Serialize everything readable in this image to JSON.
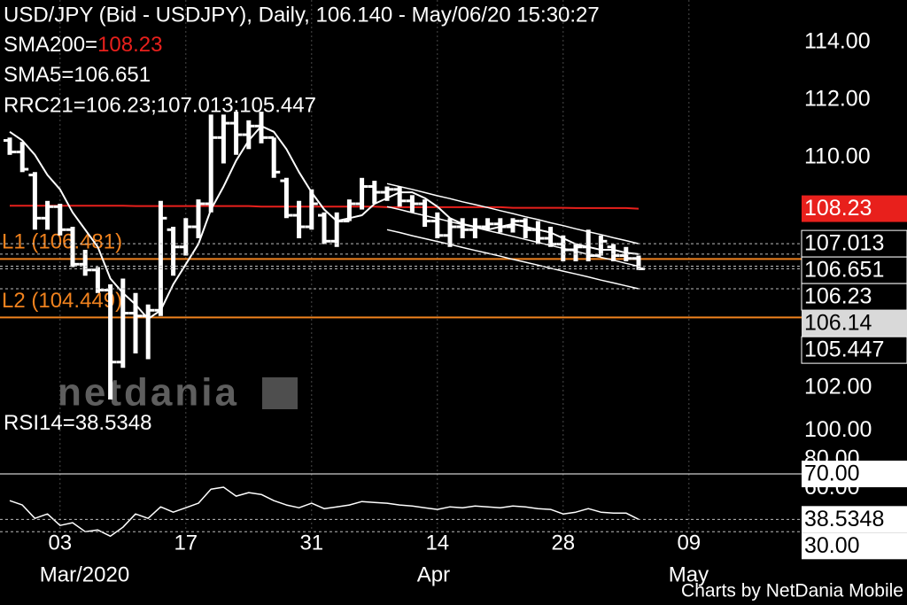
{
  "chart_data": [
    {
      "type": "ohlc",
      "title": "USD/JPY (Bid - USDJPY),  Daily, 106.140 - May/06/20 15:30:27",
      "categories": [
        null,
        null,
        null,
        null,
        "03",
        null,
        null,
        null,
        null,
        null,
        null,
        null,
        null,
        null,
        "17",
        null,
        null,
        null,
        null,
        null,
        null,
        null,
        null,
        null,
        "31",
        null,
        null,
        null,
        null,
        null,
        null,
        null,
        null,
        null,
        "14",
        null,
        null,
        null,
        null,
        null,
        null,
        null,
        null,
        null,
        "28",
        null,
        null,
        null,
        null,
        null,
        null,
        null,
        null,
        null,
        "09",
        null,
        null,
        null,
        null,
        null,
        null,
        null,
        null
      ],
      "months": [
        null,
        null,
        null,
        null,
        "Mar/2020",
        null,
        null,
        null,
        null,
        null,
        null,
        null,
        null,
        null,
        null,
        null,
        null,
        null,
        null,
        null,
        null,
        null,
        null,
        null,
        null,
        null,
        null,
        null,
        null,
        null,
        null,
        null,
        null,
        null,
        "Apr",
        null,
        null,
        null,
        null,
        null,
        null,
        null,
        null,
        null,
        null,
        null,
        null,
        null,
        null,
        null,
        null,
        null,
        null,
        null,
        "May",
        null,
        null,
        null,
        null,
        null,
        null,
        null,
        null
      ],
      "open": [
        110.6,
        110.2,
        109.4,
        107.9,
        108.3,
        107.5,
        106.3,
        106.1,
        105.4,
        102.9,
        104.6,
        104.5,
        104.7,
        107.5,
        106.9,
        107.6,
        108.4,
        110.7,
        111.2,
        110.8,
        111.1,
        110.7,
        109.2,
        108.0,
        107.6,
        108.0,
        107.1,
        107.8,
        108.4,
        109.0,
        108.8,
        108.9,
        108.5,
        108.4,
        107.8,
        107.3,
        107.6,
        107.5,
        107.6,
        107.7,
        107.6,
        107.8,
        107.5,
        107.2,
        107.0,
        106.8,
        106.9,
        106.6,
        106.9,
        106.6,
        106.5,
        null,
        null,
        null,
        null,
        null,
        null,
        null,
        null,
        null,
        null,
        null,
        null
      ],
      "high": [
        110.7,
        110.55,
        109.5,
        108.5,
        108.4,
        107.6,
        106.8,
        106.2,
        105.6,
        105.8,
        105.3,
        104.9,
        108.5,
        107.6,
        107.9,
        108.55,
        111.5,
        111.5,
        111.6,
        111.3,
        111.6,
        110.7,
        109.3,
        108.5,
        108.9,
        108.1,
        108.1,
        108.55,
        109.3,
        109.2,
        109.0,
        109.0,
        108.7,
        108.55,
        108.1,
        107.9,
        107.9,
        107.9,
        107.9,
        107.9,
        107.9,
        107.9,
        107.8,
        107.6,
        107.3,
        107.0,
        107.5,
        107.3,
        107.0,
        106.9,
        106.6,
        null,
        null,
        null,
        null,
        null,
        null,
        null,
        null,
        null,
        null,
        null,
        null
      ],
      "low": [
        110.1,
        109.5,
        107.5,
        107.5,
        107.3,
        106.2,
        105.9,
        105.3,
        101.6,
        102.7,
        103.2,
        103.0,
        104.5,
        105.9,
        106.6,
        107.2,
        108.1,
        109.8,
        110.1,
        110.3,
        110.5,
        109.3,
        107.9,
        107.2,
        107.5,
        107.0,
        106.9,
        107.8,
        108.2,
        108.4,
        108.5,
        108.3,
        108.1,
        107.6,
        107.2,
        106.9,
        107.2,
        107.2,
        107.5,
        107.4,
        107.4,
        107.2,
        107.0,
        106.9,
        106.4,
        106.4,
        106.4,
        106.6,
        106.4,
        106.4,
        106.1,
        null,
        null,
        null,
        null,
        null,
        null,
        null,
        null,
        null,
        null,
        null,
        null
      ],
      "close": [
        110.2,
        109.6,
        107.9,
        108.3,
        107.5,
        106.3,
        106.1,
        105.4,
        102.9,
        104.6,
        104.5,
        104.7,
        107.9,
        106.9,
        107.6,
        108.4,
        110.7,
        111.2,
        110.8,
        111.1,
        110.7,
        109.5,
        108.0,
        107.6,
        108.4,
        107.1,
        107.8,
        108.4,
        109.0,
        108.8,
        108.9,
        108.5,
        108.4,
        107.8,
        107.3,
        107.6,
        107.5,
        107.6,
        107.7,
        107.6,
        107.8,
        107.5,
        107.2,
        107.0,
        106.8,
        106.9,
        106.6,
        107.1,
        106.6,
        106.5,
        106.14,
        null,
        null,
        null,
        null,
        null,
        null,
        null,
        null,
        null,
        null,
        null,
        null
      ],
      "color": "#ffffff",
      "series": [
        {
          "name": "SMA200=",
          "color": "#e8201c",
          "values": [
            108.33,
            108.33,
            108.33,
            108.33,
            108.33,
            108.33,
            108.33,
            108.33,
            108.33,
            108.33,
            108.32,
            108.32,
            108.32,
            108.32,
            108.32,
            108.32,
            108.32,
            108.32,
            108.32,
            108.32,
            108.3,
            108.3,
            108.3,
            108.3,
            108.3,
            108.3,
            108.3,
            108.3,
            108.3,
            108.3,
            108.28,
            108.28,
            108.28,
            108.28,
            108.28,
            108.28,
            108.28,
            108.28,
            108.28,
            108.28,
            108.26,
            108.26,
            108.26,
            108.26,
            108.26,
            108.25,
            108.25,
            108.25,
            108.25,
            108.25,
            108.23,
            null,
            null,
            null,
            null,
            null,
            null,
            null,
            null,
            null,
            null,
            null,
            null
          ]
        },
        {
          "name": "SMA5=",
          "color": "#ffffff",
          "values": [
            110.9,
            110.6,
            110.1,
            109.4,
            108.9,
            108.1,
            107.5,
            106.9,
            105.8,
            105.3,
            104.9,
            104.4,
            104.7,
            105.6,
            106.3,
            107.0,
            108.2,
            109.0,
            109.9,
            110.6,
            111.1,
            110.9,
            110.3,
            109.5,
            108.8,
            108.2,
            107.8,
            107.9,
            108.0,
            108.4,
            108.6,
            108.8,
            108.8,
            108.6,
            108.3,
            107.9,
            107.7,
            107.6,
            107.5,
            107.6,
            107.7,
            107.6,
            107.5,
            107.4,
            107.2,
            107.0,
            106.9,
            106.8,
            106.8,
            106.7,
            106.651,
            null,
            null,
            null,
            null,
            null,
            null,
            null,
            null,
            null,
            null,
            null,
            null
          ]
        }
      ],
      "channel": {
        "name": "RRC21=106.23;107.013;105.447",
        "color": "#ffffff",
        "upper": [
          null,
          null,
          null,
          null,
          null,
          null,
          null,
          null,
          null,
          null,
          null,
          null,
          null,
          null,
          null,
          null,
          null,
          null,
          null,
          null,
          null,
          null,
          null,
          null,
          null,
          null,
          null,
          null,
          null,
          null,
          109.1,
          109.0,
          108.9,
          108.79,
          108.68,
          108.58,
          108.47,
          108.37,
          108.27,
          108.16,
          108.06,
          107.95,
          107.85,
          107.74,
          107.64,
          107.53,
          107.43,
          107.33,
          107.22,
          107.12,
          107.013,
          null,
          null,
          null,
          null,
          null,
          null,
          null,
          null,
          null,
          null,
          null,
          null
        ],
        "middle": [
          null,
          null,
          null,
          null,
          null,
          null,
          null,
          null,
          null,
          null,
          null,
          null,
          null,
          null,
          null,
          null,
          null,
          null,
          null,
          null,
          null,
          null,
          null,
          null,
          null,
          null,
          null,
          null,
          null,
          null,
          108.3,
          108.2,
          108.09,
          107.99,
          107.89,
          107.78,
          107.68,
          107.58,
          107.47,
          107.37,
          107.27,
          107.16,
          107.06,
          106.95,
          106.85,
          106.75,
          106.64,
          106.54,
          106.44,
          106.33,
          106.23,
          null,
          null,
          null,
          null,
          null,
          null,
          null,
          null,
          null,
          null,
          null,
          null
        ],
        "lower": [
          null,
          null,
          null,
          null,
          null,
          null,
          null,
          null,
          null,
          null,
          null,
          null,
          null,
          null,
          null,
          null,
          null,
          null,
          null,
          null,
          null,
          null,
          null,
          null,
          null,
          null,
          null,
          null,
          null,
          null,
          107.5,
          107.4,
          107.29,
          107.19,
          107.09,
          106.99,
          106.88,
          106.78,
          106.68,
          106.58,
          106.47,
          106.37,
          106.27,
          106.16,
          106.06,
          105.96,
          105.86,
          105.75,
          105.65,
          105.55,
          105.447,
          null,
          null,
          null,
          null,
          null,
          null,
          null,
          null,
          null,
          null,
          null,
          null
        ]
      },
      "levels": [
        {
          "label": "L1 (106.481)",
          "value": 106.481,
          "color": "#f0821e"
        },
        {
          "label": "L2 (104.449)",
          "value": 104.449,
          "color": "#f0821e"
        }
      ],
      "ylim": [
        101.2,
        115.48
      ],
      "yticks": [
        {
          "value": 102,
          "label": "102.00"
        },
        {
          "value": 110,
          "label": "110.00"
        },
        {
          "value": 112,
          "label": "112.00"
        },
        {
          "value": 114,
          "label": "114.00"
        }
      ],
      "xgrid": true
    },
    {
      "type": "line",
      "series": [
        {
          "name": "RSI14=",
          "color": "#ffffff",
          "values": [
            51.5,
            48.5,
            39.2,
            42.3,
            34.3,
            36.2,
            30,
            31.2,
            26.9,
            33.1,
            42.3,
            39.2,
            47.2,
            43.5,
            46.6,
            49.7,
            59.5,
            60.8,
            54.6,
            57.1,
            55.8,
            51.5,
            48.5,
            46.6,
            49.7,
            46,
            47.2,
            48.5,
            50.9,
            50.3,
            49.7,
            48.5,
            47.8,
            46.6,
            45.4,
            47.2,
            46.6,
            47.8,
            47.2,
            46.6,
            47.8,
            47.2,
            46,
            45.4,
            42.3,
            43.5,
            46,
            43.5,
            42.9,
            42.9,
            38.5348,
            null,
            null,
            null,
            null,
            null,
            null,
            null,
            null,
            null,
            null,
            null,
            null
          ]
        }
      ],
      "levels": [
        {
          "label": "70.00",
          "value": 70,
          "style": "solid"
        },
        {
          "label": "30.00",
          "value": 30,
          "style": "dashed"
        }
      ],
      "ylim": [
        24,
        113
      ],
      "yticks": [
        {
          "value": 60,
          "label": "60.00"
        },
        {
          "value": 80,
          "label": "80.00"
        },
        {
          "value": 100,
          "label": "100.00"
        }
      ]
    }
  ],
  "watermark": "netdania",
  "credit": "Charts by NetDania Mobile"
}
